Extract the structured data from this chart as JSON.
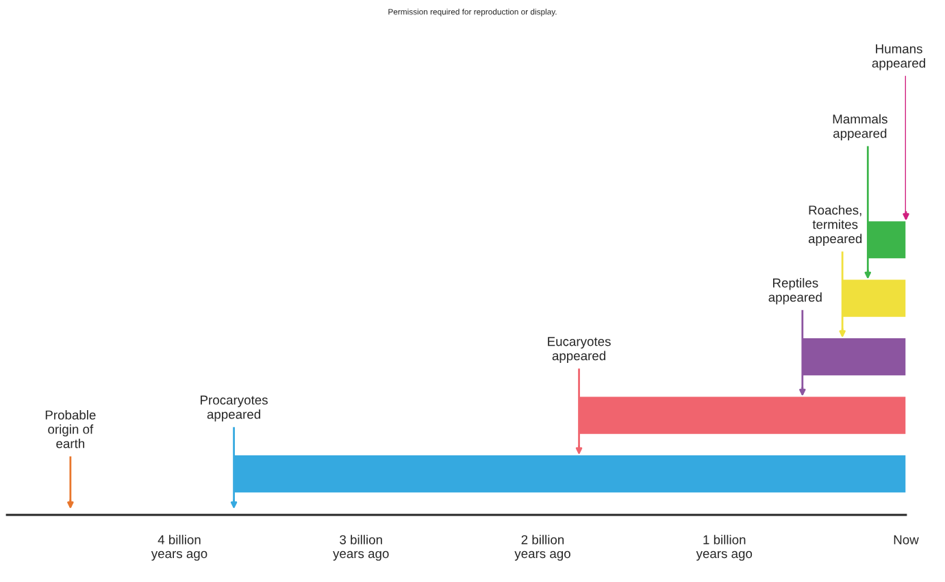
{
  "chart_data": {
    "type": "bar",
    "orientation": "horizontal",
    "categories": [
      null,
      null,
      null,
      null,
      null
    ],
    "base": [
      0,
      0,
      0,
      0,
      0
    ],
    "values": [
      0.21,
      0.35,
      0.57,
      1.8,
      3.7
    ],
    "colors": [
      "#3cb54a",
      "#f0e03c",
      "#8c55a0",
      "#f0646e",
      "#35a9e0"
    ],
    "xlim": [
      4.95,
      0
    ],
    "xticks": [
      {
        "value": 4,
        "label": "4 billion\nyears ago"
      },
      {
        "value": 3,
        "label": "3 billion\nyears ago"
      },
      {
        "value": 2,
        "label": "2 billion\nyears ago"
      },
      {
        "value": 1,
        "label": "1 billion\nyears ago"
      },
      {
        "value": 0,
        "label": "Now"
      }
    ],
    "grid": false,
    "legend": false,
    "ref_lines": [
      {
        "axis": "x",
        "value": 4.6,
        "label": "Probable\norigin of\nearth",
        "color": "#e8762c"
      },
      {
        "axis": "x",
        "value": 0,
        "label": "Humans\nappeared",
        "color": "#d0207f"
      }
    ],
    "annotations": [
      "Permission required for reproduction or display.",
      {
        "text": "Procaryotes\nappeared",
        "x": 3.7
      },
      {
        "text": "Eucaryotes\nappeared",
        "x": 1.8
      },
      {
        "text": "Reptiles\nappeared",
        "x": 0.57
      },
      {
        "text": "Roaches,\ntermites\nappeared",
        "x": 0.35
      },
      {
        "text": "Mammals\nappeared",
        "x": 0.21
      }
    ]
  }
}
